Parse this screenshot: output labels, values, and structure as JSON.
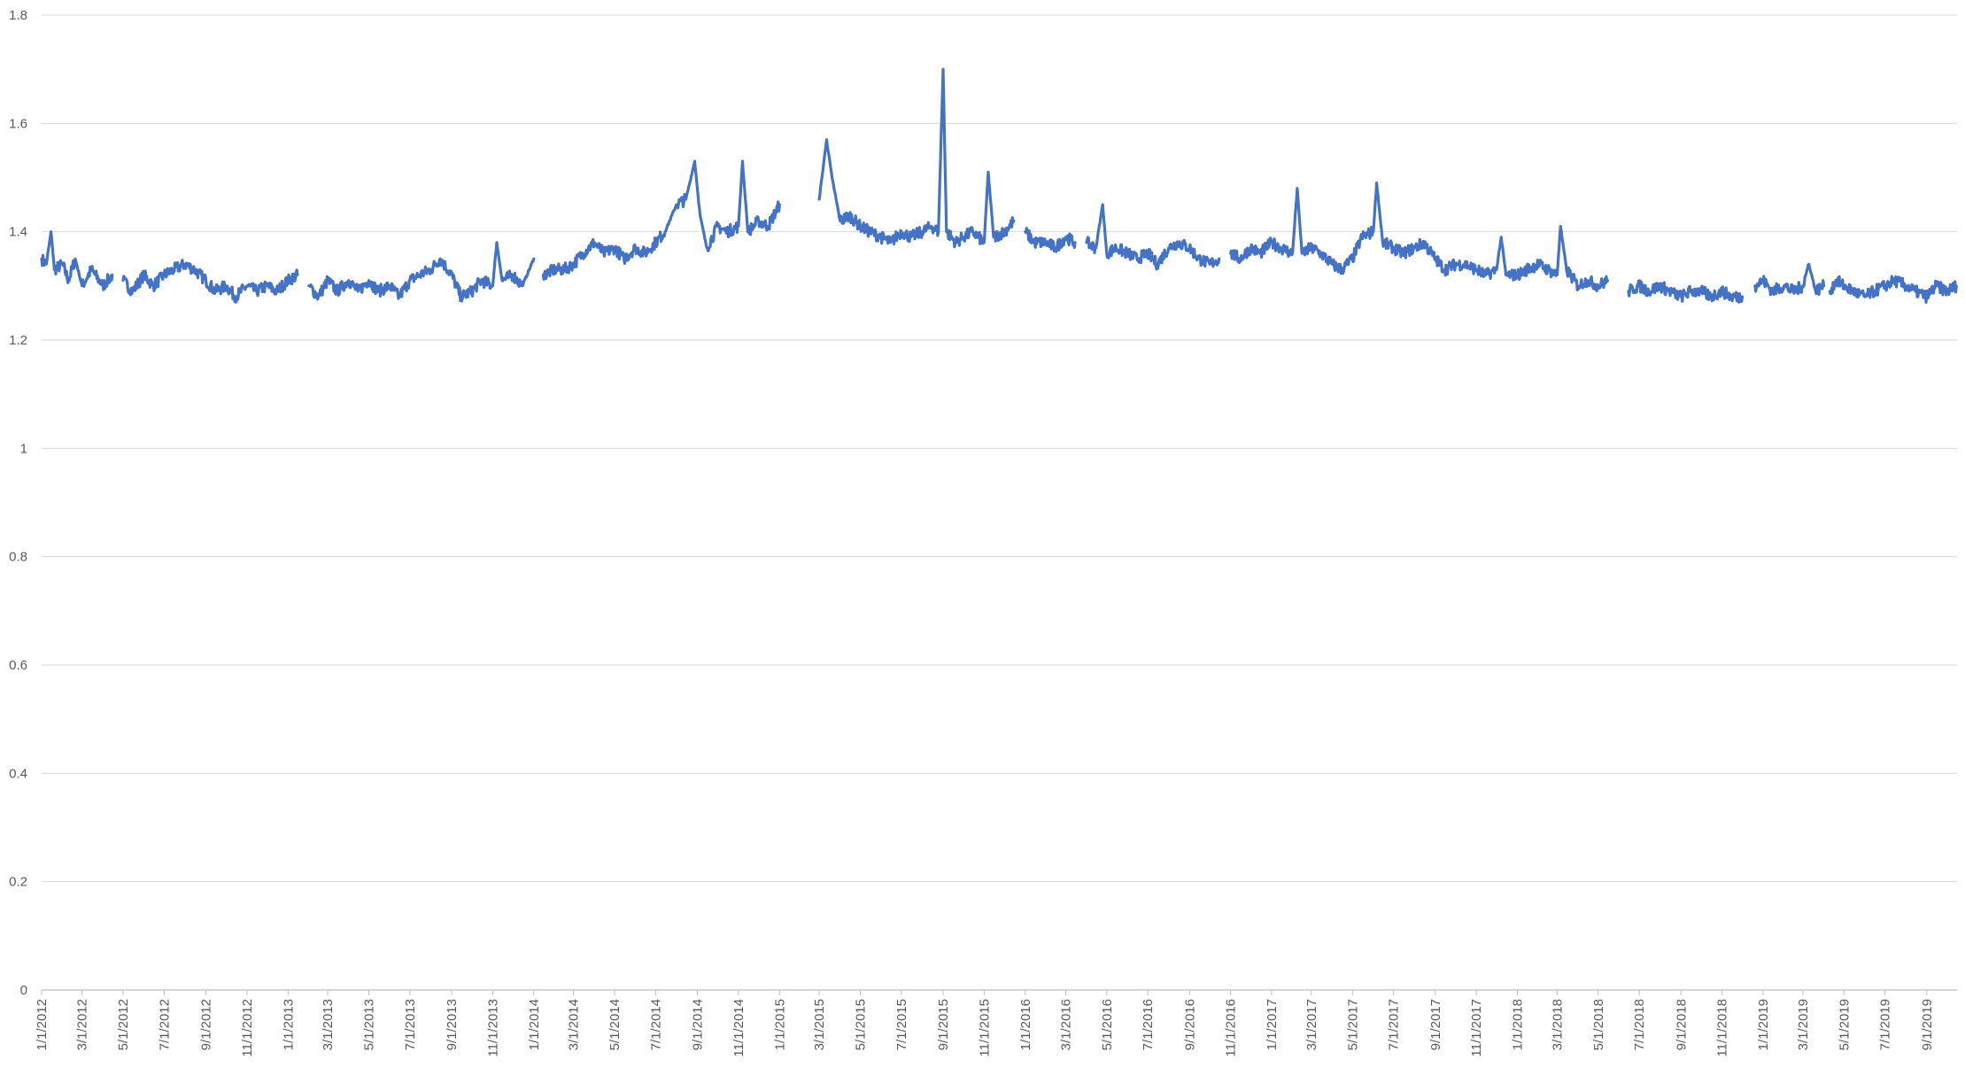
{
  "chart_data": {
    "type": "line",
    "title": "",
    "xlabel": "",
    "ylabel": "",
    "ylim": [
      0,
      1.8
    ],
    "yticks": [
      "0",
      "0.2",
      "0.4",
      "0.6",
      "0.8",
      "1",
      "1.2",
      "1.4",
      "1.6",
      "1.8"
    ],
    "xlim": [
      "2012-01-01",
      "2019-10-16"
    ],
    "xticks": [
      "1/1/2012",
      "3/1/2012",
      "5/1/2012",
      "7/1/2012",
      "9/1/2012",
      "11/1/2012",
      "1/1/2013",
      "3/1/2013",
      "5/1/2013",
      "7/1/2013",
      "9/1/2013",
      "11/1/2013",
      "1/1/2014",
      "3/1/2014",
      "5/1/2014",
      "7/1/2014",
      "9/1/2014",
      "11/1/2014",
      "1/1/2015",
      "3/1/2015",
      "5/1/2015",
      "7/1/2015",
      "9/1/2015",
      "11/1/2015",
      "1/1/2016",
      "3/1/2016",
      "5/1/2016",
      "7/1/2016",
      "9/1/2016",
      "11/1/2016",
      "1/1/2017",
      "3/1/2017",
      "5/1/2017",
      "7/1/2017",
      "9/1/2017",
      "11/1/2017",
      "1/1/2018",
      "3/1/2018",
      "5/1/2018",
      "7/1/2018",
      "9/1/2018",
      "11/1/2018",
      "1/1/2019",
      "3/1/2019",
      "5/1/2019",
      "7/1/2019",
      "9/1/2019"
    ],
    "grid": true,
    "legend": "none",
    "line_color": "#4472C4",
    "series": [
      {
        "segments": [
          [
            [
              "2012-01-01",
              1.35
            ],
            [
              "2012-01-08",
              1.34
            ],
            [
              "2012-01-15",
              1.4
            ],
            [
              "2012-01-20",
              1.33
            ],
            [
              "2012-02-01",
              1.34
            ],
            [
              "2012-02-10",
              1.31
            ],
            [
              "2012-02-20",
              1.35
            ],
            [
              "2012-03-01",
              1.3
            ],
            [
              "2012-03-15",
              1.33
            ],
            [
              "2012-04-01",
              1.3
            ],
            [
              "2012-04-15",
              1.32
            ]
          ],
          [
            [
              "2012-05-01",
              1.31
            ],
            [
              "2012-05-15",
              1.29
            ],
            [
              "2012-06-01",
              1.32
            ],
            [
              "2012-06-15",
              1.3
            ],
            [
              "2012-07-01",
              1.32
            ],
            [
              "2012-07-15",
              1.33
            ],
            [
              "2012-08-01",
              1.34
            ],
            [
              "2012-08-15",
              1.33
            ],
            [
              "2012-09-01",
              1.31
            ],
            [
              "2012-09-15",
              1.29
            ],
            [
              "2012-10-01",
              1.3
            ],
            [
              "2012-10-15",
              1.28
            ],
            [
              "2012-11-01",
              1.3
            ],
            [
              "2012-11-15",
              1.29
            ],
            [
              "2012-12-01",
              1.3
            ],
            [
              "2012-12-15",
              1.29
            ],
            [
              "2013-01-01",
              1.31
            ],
            [
              "2013-01-15",
              1.32
            ]
          ],
          [
            [
              "2013-02-01",
              1.3
            ],
            [
              "2013-02-15",
              1.28
            ],
            [
              "2013-03-01",
              1.31
            ],
            [
              "2013-03-15",
              1.29
            ],
            [
              "2013-04-01",
              1.31
            ],
            [
              "2013-04-15",
              1.29
            ],
            [
              "2013-05-01",
              1.31
            ],
            [
              "2013-05-15",
              1.29
            ],
            [
              "2013-06-01",
              1.3
            ],
            [
              "2013-06-15",
              1.28
            ],
            [
              "2013-07-01",
              1.31
            ],
            [
              "2013-07-15",
              1.32
            ],
            [
              "2013-08-01",
              1.33
            ],
            [
              "2013-08-15",
              1.35
            ],
            [
              "2013-09-01",
              1.32
            ],
            [
              "2013-09-15",
              1.28
            ],
            [
              "2013-10-01",
              1.29
            ],
            [
              "2013-10-15",
              1.31
            ],
            [
              "2013-11-01",
              1.3
            ],
            [
              "2013-11-07",
              1.38
            ],
            [
              "2013-11-15",
              1.31
            ],
            [
              "2013-12-01",
              1.32
            ],
            [
              "2013-12-15",
              1.3
            ],
            [
              "2014-01-01",
              1.35
            ]
          ],
          [
            [
              "2014-01-15",
              1.32
            ],
            [
              "2014-02-01",
              1.33
            ],
            [
              "2014-02-15",
              1.33
            ],
            [
              "2014-03-01",
              1.34
            ],
            [
              "2014-03-15",
              1.36
            ],
            [
              "2014-04-01",
              1.38
            ],
            [
              "2014-04-15",
              1.36
            ],
            [
              "2014-05-01",
              1.37
            ],
            [
              "2014-05-15",
              1.35
            ],
            [
              "2014-06-01",
              1.37
            ],
            [
              "2014-06-15",
              1.36
            ],
            [
              "2014-07-01",
              1.38
            ],
            [
              "2014-07-15",
              1.4
            ],
            [
              "2014-08-01",
              1.45
            ],
            [
              "2014-08-15",
              1.46
            ],
            [
              "2014-08-28",
              1.53
            ],
            [
              "2014-09-05",
              1.43
            ],
            [
              "2014-09-15",
              1.37
            ],
            [
              "2014-10-01",
              1.41
            ],
            [
              "2014-10-15",
              1.4
            ],
            [
              "2014-11-01",
              1.41
            ],
            [
              "2014-11-07",
              1.53
            ],
            [
              "2014-11-15",
              1.4
            ],
            [
              "2014-12-01",
              1.42
            ],
            [
              "2014-12-15",
              1.41
            ],
            [
              "2015-01-01",
              1.45
            ]
          ],
          [
            [
              "2015-03-01",
              1.46
            ],
            [
              "2015-03-12",
              1.57
            ],
            [
              "2015-03-20",
              1.5
            ],
            [
              "2015-04-01",
              1.42
            ],
            [
              "2015-04-15",
              1.43
            ],
            [
              "2015-05-01",
              1.41
            ],
            [
              "2015-05-15",
              1.4
            ],
            [
              "2015-06-01",
              1.39
            ],
            [
              "2015-06-15",
              1.38
            ],
            [
              "2015-07-01",
              1.4
            ],
            [
              "2015-07-15",
              1.39
            ],
            [
              "2015-08-01",
              1.4
            ],
            [
              "2015-08-15",
              1.41
            ],
            [
              "2015-08-25",
              1.4
            ],
            [
              "2015-09-01",
              1.7
            ],
            [
              "2015-09-06",
              1.4
            ],
            [
              "2015-09-20",
              1.38
            ],
            [
              "2015-10-01",
              1.39
            ],
            [
              "2015-10-15",
              1.4
            ],
            [
              "2015-11-01",
              1.38
            ],
            [
              "2015-11-07",
              1.51
            ],
            [
              "2015-11-15",
              1.39
            ],
            [
              "2015-12-01",
              1.4
            ],
            [
              "2015-12-15",
              1.42
            ]
          ],
          [
            [
              "2016-01-01",
              1.4
            ],
            [
              "2016-01-15",
              1.38
            ],
            [
              "2016-02-01",
              1.38
            ],
            [
              "2016-02-15",
              1.37
            ],
            [
              "2016-03-01",
              1.39
            ],
            [
              "2016-03-15",
              1.38
            ]
          ],
          [
            [
              "2016-04-01",
              1.38
            ],
            [
              "2016-04-15",
              1.37
            ],
            [
              "2016-04-25",
              1.45
            ],
            [
              "2016-05-01",
              1.36
            ],
            [
              "2016-05-15",
              1.37
            ],
            [
              "2016-06-01",
              1.36
            ],
            [
              "2016-06-15",
              1.35
            ],
            [
              "2016-07-01",
              1.36
            ],
            [
              "2016-07-15",
              1.34
            ],
            [
              "2016-08-01",
              1.37
            ],
            [
              "2016-08-15",
              1.38
            ],
            [
              "2016-09-01",
              1.37
            ],
            [
              "2016-09-15",
              1.35
            ],
            [
              "2016-10-01",
              1.34
            ],
            [
              "2016-10-15",
              1.35
            ]
          ],
          [
            [
              "2016-11-01",
              1.36
            ],
            [
              "2016-11-15",
              1.35
            ],
            [
              "2016-12-01",
              1.37
            ],
            [
              "2016-12-15",
              1.36
            ],
            [
              "2017-01-01",
              1.38
            ],
            [
              "2017-01-15",
              1.37
            ],
            [
              "2017-02-01",
              1.36
            ],
            [
              "2017-02-08",
              1.48
            ],
            [
              "2017-02-15",
              1.36
            ],
            [
              "2017-03-01",
              1.37
            ],
            [
              "2017-03-15",
              1.36
            ],
            [
              "2017-04-01",
              1.34
            ],
            [
              "2017-04-15",
              1.33
            ],
            [
              "2017-05-01",
              1.35
            ],
            [
              "2017-05-15",
              1.39
            ],
            [
              "2017-06-01",
              1.4
            ],
            [
              "2017-06-06",
              1.49
            ],
            [
              "2017-06-15",
              1.38
            ],
            [
              "2017-07-01",
              1.37
            ],
            [
              "2017-07-15",
              1.36
            ],
            [
              "2017-08-01",
              1.37
            ],
            [
              "2017-08-15",
              1.38
            ],
            [
              "2017-09-01",
              1.35
            ],
            [
              "2017-09-15",
              1.33
            ],
            [
              "2017-10-01",
              1.34
            ],
            [
              "2017-10-15",
              1.34
            ],
            [
              "2017-11-01",
              1.33
            ],
            [
              "2017-11-15",
              1.32
            ],
            [
              "2017-12-01",
              1.33
            ],
            [
              "2017-12-08",
              1.39
            ],
            [
              "2017-12-15",
              1.32
            ],
            [
              "2018-01-01",
              1.32
            ],
            [
              "2018-01-15",
              1.33
            ],
            [
              "2018-02-01",
              1.34
            ],
            [
              "2018-02-15",
              1.33
            ],
            [
              "2018-03-01",
              1.32
            ],
            [
              "2018-03-06",
              1.41
            ],
            [
              "2018-03-15",
              1.33
            ],
            [
              "2018-04-01",
              1.3
            ],
            [
              "2018-04-15",
              1.31
            ],
            [
              "2018-05-01",
              1.3
            ],
            [
              "2018-05-15",
              1.31
            ]
          ],
          [
            [
              "2018-06-15",
              1.29
            ],
            [
              "2018-07-01",
              1.3
            ],
            [
              "2018-07-15",
              1.29
            ],
            [
              "2018-08-01",
              1.3
            ],
            [
              "2018-08-15",
              1.29
            ],
            [
              "2018-09-01",
              1.28
            ],
            [
              "2018-09-15",
              1.29
            ],
            [
              "2018-10-01",
              1.29
            ],
            [
              "2018-10-15",
              1.28
            ],
            [
              "2018-11-01",
              1.29
            ],
            [
              "2018-11-15",
              1.28
            ],
            [
              "2018-12-01",
              1.28
            ]
          ],
          [
            [
              "2018-12-20",
              1.3
            ],
            [
              "2019-01-01",
              1.31
            ],
            [
              "2019-01-15",
              1.29
            ],
            [
              "2019-02-01",
              1.3
            ],
            [
              "2019-02-15",
              1.29
            ],
            [
              "2019-03-01",
              1.3
            ],
            [
              "2019-03-10",
              1.34
            ],
            [
              "2019-03-20",
              1.29
            ],
            [
              "2019-04-01",
              1.3
            ]
          ],
          [
            [
              "2019-04-10",
              1.29
            ],
            [
              "2019-04-20",
              1.31
            ],
            [
              "2019-05-01",
              1.3
            ],
            [
              "2019-05-15",
              1.29
            ],
            [
              "2019-06-01",
              1.28
            ],
            [
              "2019-06-15",
              1.29
            ],
            [
              "2019-07-01",
              1.3
            ],
            [
              "2019-07-15",
              1.31
            ],
            [
              "2019-08-01",
              1.3
            ],
            [
              "2019-08-15",
              1.29
            ],
            [
              "2019-09-01",
              1.28
            ],
            [
              "2019-09-15",
              1.3
            ],
            [
              "2019-10-01",
              1.29
            ],
            [
              "2019-10-15",
              1.3
            ]
          ]
        ]
      }
    ]
  }
}
